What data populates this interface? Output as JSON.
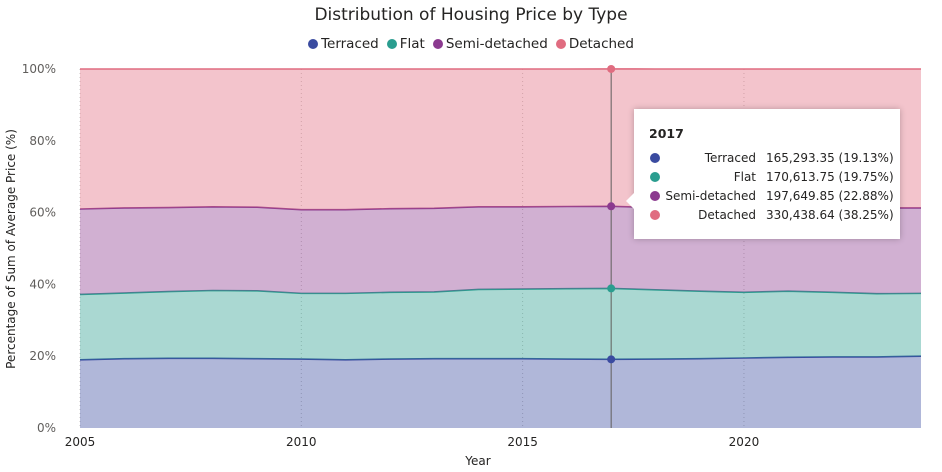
{
  "chart_data": {
    "type": "area",
    "stacking": "percent",
    "title": "Distribution of Housing Price by Type",
    "xlabel": "Year",
    "ylabel": "Percentage of Sum of Average Price (%)",
    "ylim": [
      0,
      100
    ],
    "xlim": [
      2005,
      2024
    ],
    "x_ticks": [
      "2005",
      "2010",
      "2015",
      "2020"
    ],
    "y_ticks": [
      "0%",
      "20%",
      "40%",
      "60%",
      "80%",
      "100%"
    ],
    "legend_position": "top-center",
    "grid": true,
    "x": [
      2005,
      2006,
      2007,
      2008,
      2009,
      2010,
      2011,
      2012,
      2013,
      2014,
      2015,
      2016,
      2017,
      2018,
      2019,
      2020,
      2021,
      2022,
      2023,
      2024
    ],
    "series": [
      {
        "name": "Terraced",
        "color": "#3a4ba0",
        "values": [
          19.0,
          19.3,
          19.4,
          19.4,
          19.3,
          19.2,
          19.0,
          19.2,
          19.3,
          19.3,
          19.3,
          19.2,
          19.13,
          19.2,
          19.3,
          19.5,
          19.7,
          19.8,
          19.8,
          20.0
        ]
      },
      {
        "name": "Flat",
        "color": "#2a9d8f",
        "values": [
          18.2,
          18.3,
          18.6,
          18.9,
          18.9,
          18.3,
          18.5,
          18.6,
          18.6,
          19.3,
          19.4,
          19.6,
          19.75,
          19.3,
          18.8,
          18.3,
          18.4,
          18.0,
          17.6,
          17.5
        ]
      },
      {
        "name": "Semi-detached",
        "color": "#8b3a8f",
        "values": [
          23.8,
          23.7,
          23.4,
          23.3,
          23.3,
          23.3,
          23.3,
          23.3,
          23.3,
          23.0,
          22.9,
          22.9,
          22.88,
          22.9,
          23.0,
          23.2,
          23.1,
          23.6,
          23.9,
          23.8
        ]
      },
      {
        "name": "Detached",
        "color": "#e06c80",
        "values": [
          39.0,
          38.7,
          38.6,
          38.4,
          38.5,
          39.2,
          39.2,
          38.9,
          38.8,
          38.4,
          38.4,
          38.3,
          38.25,
          38.6,
          38.9,
          39.0,
          38.8,
          38.6,
          38.7,
          38.7
        ]
      }
    ],
    "highlight": {
      "x": 2017,
      "label": "2017",
      "rows": [
        {
          "name": "Terraced",
          "value": "165,293.35 (19.13%)",
          "color": "#3a4ba0"
        },
        {
          "name": "Flat",
          "value": "170,613.75 (19.75%)",
          "color": "#2a9d8f"
        },
        {
          "name": "Semi-detached",
          "value": "197,649.85 (22.88%)",
          "color": "#8b3a8f"
        },
        {
          "name": "Detached",
          "value": "330,438.64 (38.25%)",
          "color": "#e06c80"
        }
      ]
    }
  }
}
